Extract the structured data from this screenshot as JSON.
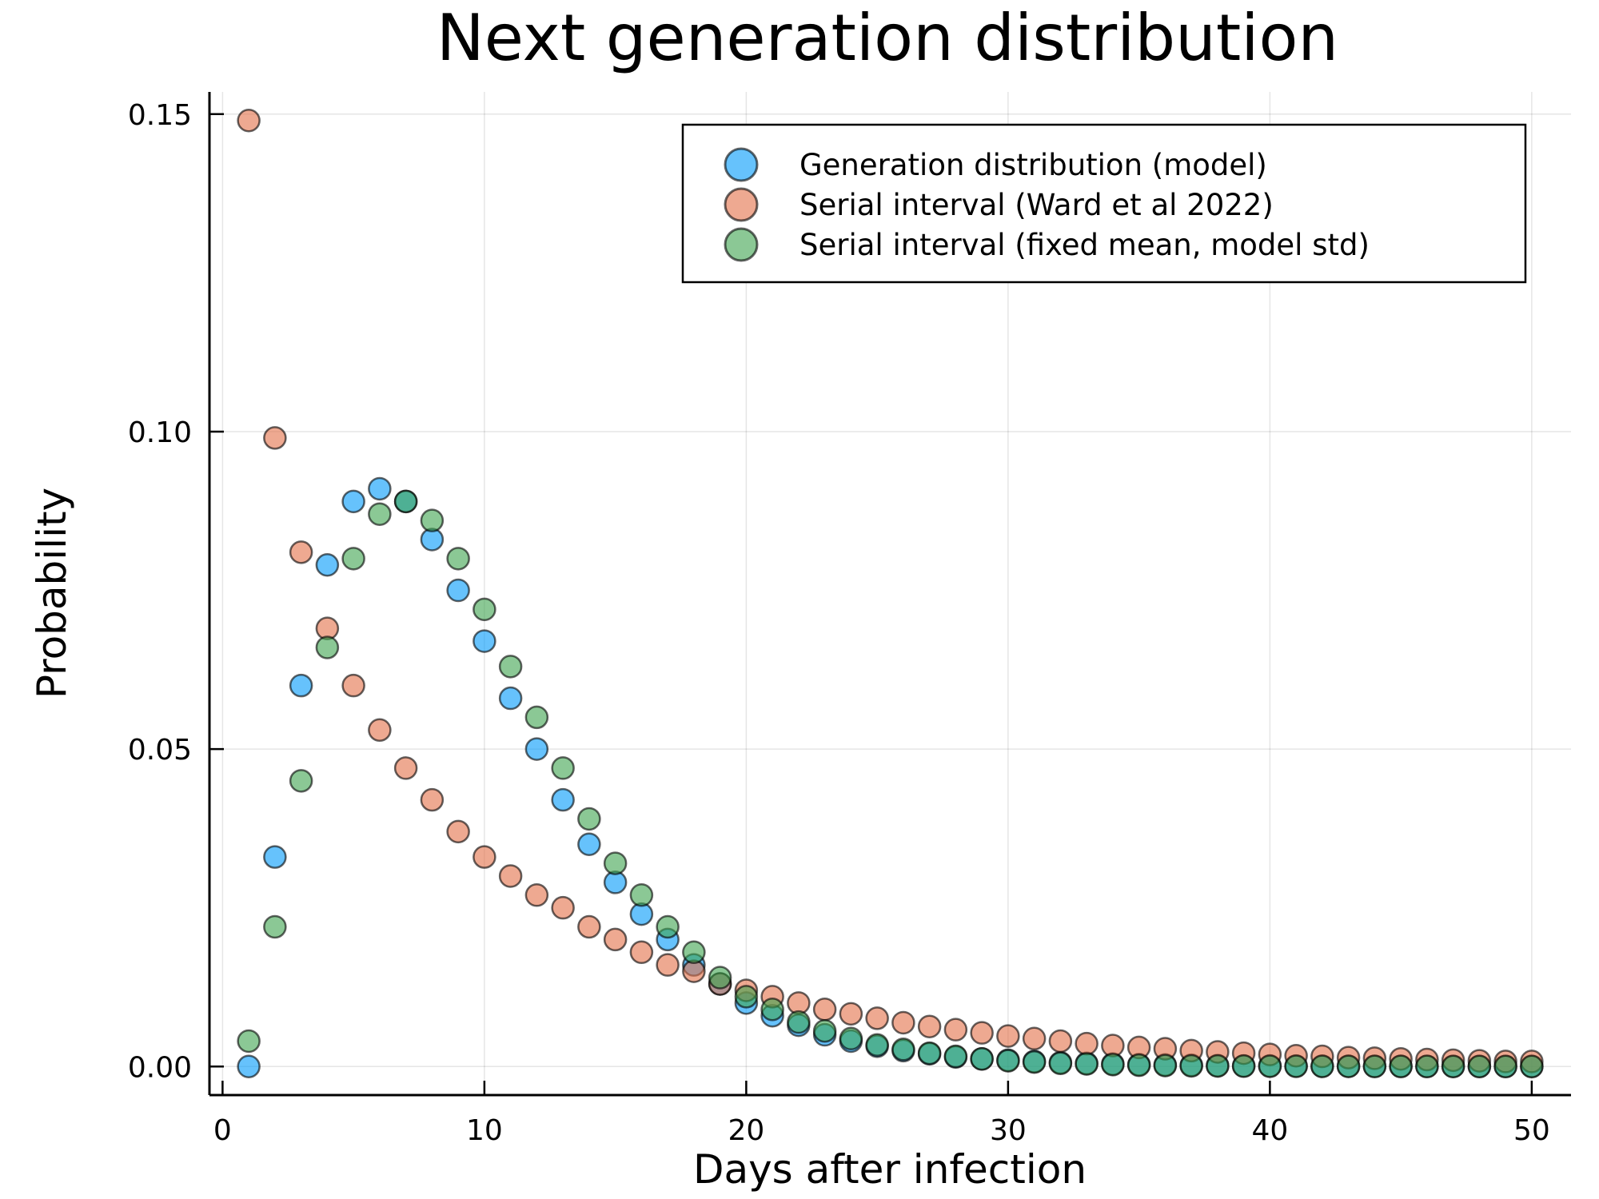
{
  "chart_data": {
    "type": "scatter",
    "title": "Next generation distribution",
    "xlabel": "Days after infection",
    "ylabel": "Probability",
    "xlim": [
      -0.5,
      51.5
    ],
    "ylim": [
      -0.0045,
      0.1535
    ],
    "xticks": [
      0,
      10,
      20,
      30,
      40,
      50
    ],
    "xtick_labels": [
      "0",
      "10",
      "20",
      "30",
      "40",
      "50"
    ],
    "yticks": [
      0.0,
      0.05,
      0.1,
      0.15
    ],
    "ytick_labels": [
      "0.00",
      "0.05",
      "0.10",
      "0.15"
    ],
    "grid": true,
    "legend_position": "top-right",
    "x": [
      1,
      2,
      3,
      4,
      5,
      6,
      7,
      8,
      9,
      10,
      11,
      12,
      13,
      14,
      15,
      16,
      17,
      18,
      19,
      20,
      21,
      22,
      23,
      24,
      25,
      26,
      27,
      28,
      29,
      30,
      31,
      32,
      33,
      34,
      35,
      36,
      37,
      38,
      39,
      40,
      41,
      42,
      43,
      44,
      45,
      46,
      47,
      48,
      49,
      50
    ],
    "series": [
      {
        "name": "Generation distribution (model)",
        "color": "#009AFA",
        "values": [
          0.0,
          0.033,
          0.06,
          0.079,
          0.089,
          0.091,
          0.089,
          0.083,
          0.075,
          0.067,
          0.058,
          0.05,
          0.042,
          0.035,
          0.029,
          0.024,
          0.02,
          0.016,
          0.013,
          0.01,
          0.008,
          0.0065,
          0.005,
          0.004,
          0.0032,
          0.0025,
          0.002,
          0.0015,
          0.0012,
          0.001,
          0.0008,
          0.0006,
          0.0005,
          0.0004,
          0.0003,
          0.00025,
          0.0002,
          0.00015,
          0.0001,
          0.0001,
          8e-05,
          6e-05,
          5e-05,
          4e-05,
          3e-05,
          2e-05,
          2e-05,
          1e-05,
          1e-05,
          1e-05
        ]
      },
      {
        "name": "Serial interval (Ward et al 2022)",
        "color": "#E36F47",
        "values": [
          0.149,
          0.099,
          0.081,
          0.069,
          0.06,
          0.053,
          0.047,
          0.042,
          0.037,
          0.033,
          0.03,
          0.027,
          0.025,
          0.022,
          0.02,
          0.018,
          0.016,
          0.015,
          0.013,
          0.012,
          0.011,
          0.01,
          0.009,
          0.0083,
          0.0076,
          0.0069,
          0.0063,
          0.0058,
          0.0053,
          0.0048,
          0.0044,
          0.004,
          0.0036,
          0.0033,
          0.003,
          0.0028,
          0.0025,
          0.0023,
          0.0021,
          0.0019,
          0.0017,
          0.0016,
          0.0014,
          0.0013,
          0.0012,
          0.0011,
          0.001,
          0.0009,
          0.0008,
          0.0008
        ]
      },
      {
        "name": "Serial interval (fixed mean, model std)",
        "color": "#3EA44E",
        "values": [
          0.004,
          0.022,
          0.045,
          0.066,
          0.08,
          0.087,
          0.089,
          0.086,
          0.08,
          0.072,
          0.063,
          0.055,
          0.047,
          0.039,
          0.032,
          0.027,
          0.022,
          0.018,
          0.014,
          0.011,
          0.009,
          0.007,
          0.0056,
          0.0044,
          0.0034,
          0.0027,
          0.0021,
          0.0016,
          0.0012,
          0.0009,
          0.0007,
          0.0005,
          0.0004,
          0.0003,
          0.0002,
          0.00015,
          0.0001,
          8e-05,
          6e-05,
          4e-05,
          3e-05,
          2e-05,
          2e-05,
          1e-05,
          1e-05,
          1e-05,
          0.0,
          0.0,
          0.0,
          0.0
        ]
      }
    ]
  }
}
